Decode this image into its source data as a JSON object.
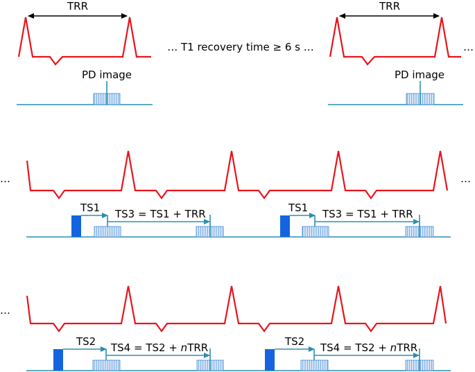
{
  "row1": {
    "trr_label": "TRR",
    "recovery_label": "… T1 recovery time ≥ 6 s …",
    "pd_label": "PD image",
    "trailing_ellipsis": "…"
  },
  "row2": {
    "leading_ellipsis": "…",
    "trailing_ellipsis": "…",
    "ts1_label": "TS1",
    "ts3_label": "TS3 = TS1 + TRR"
  },
  "row3": {
    "leading_ellipsis": "…",
    "ts2_label": "TS2",
    "ts4_prefix": "TS4 = TS2 + ",
    "ts4_italic": "n",
    "ts4_suffix": "TRR"
  },
  "colors": {
    "ecg": "#e8141c",
    "timing": "#2a8fb0",
    "acquisition": "#3f88d6",
    "pulse": "#1464e0"
  }
}
